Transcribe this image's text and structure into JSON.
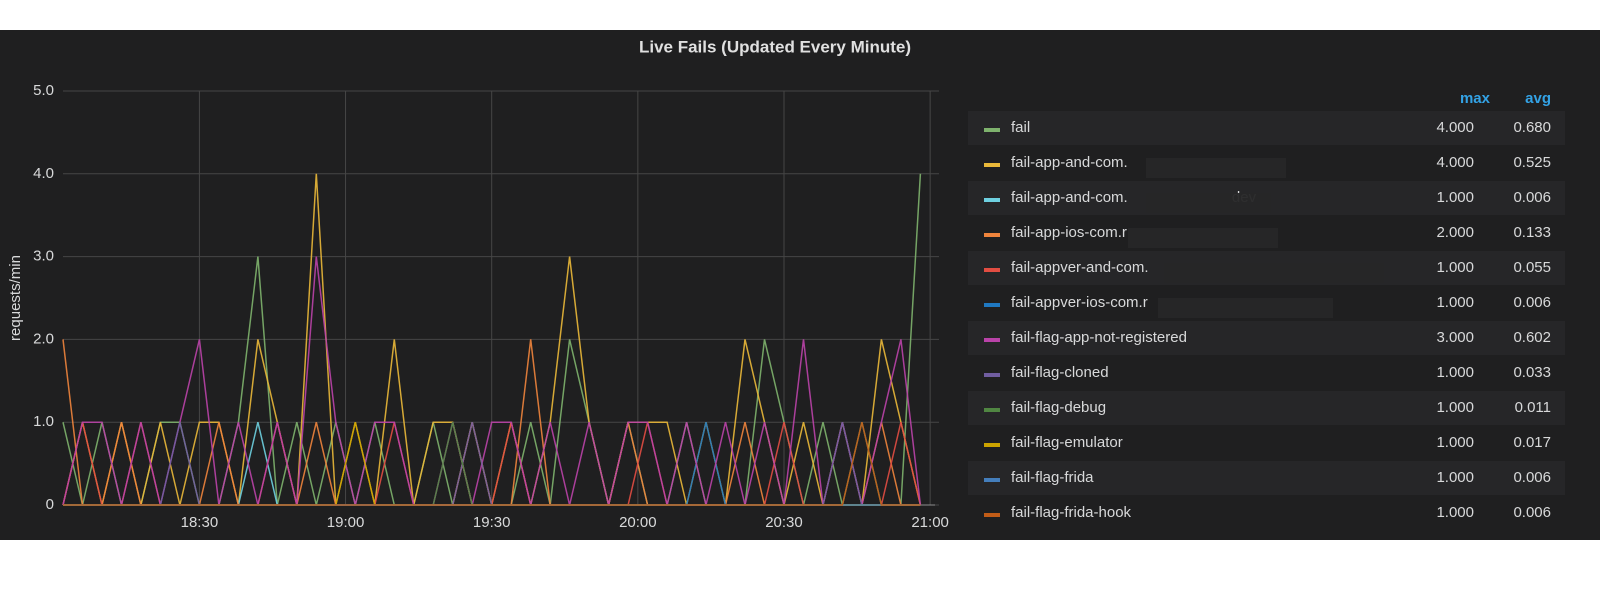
{
  "chart_data": {
    "type": "line",
    "title": "Live Fails (Updated Every Minute)",
    "y_label": "requests/min",
    "x": [
      "18:02",
      "18:06",
      "18:10",
      "18:14",
      "18:18",
      "18:22",
      "18:26",
      "18:30",
      "18:34",
      "18:38",
      "18:42",
      "18:46",
      "18:50",
      "18:54",
      "18:58",
      "19:02",
      "19:06",
      "19:10",
      "19:14",
      "19:18",
      "19:22",
      "19:26",
      "19:30",
      "19:34",
      "19:38",
      "19:42",
      "19:46",
      "19:50",
      "19:54",
      "19:58",
      "20:02",
      "20:06",
      "20:10",
      "20:14",
      "20:18",
      "20:22",
      "20:26",
      "20:30",
      "20:34",
      "20:38",
      "20:42",
      "20:46",
      "20:50",
      "20:54",
      "20:58"
    ],
    "xlim": [
      "18:02",
      "21:01"
    ],
    "xticks": [
      "18:30",
      "19:00",
      "19:30",
      "20:00",
      "20:30",
      "21:00"
    ],
    "ylim": [
      0,
      5
    ],
    "yticks": [
      0,
      {
        "value": 1,
        "label": "1.0"
      },
      {
        "value": 2,
        "label": "2.0"
      },
      {
        "value": 3,
        "label": "3.0"
      },
      {
        "value": 4,
        "label": "4.0"
      },
      {
        "value": 5,
        "label": "5.0"
      }
    ],
    "grid": true,
    "legend_columns": [
      "max",
      "avg"
    ],
    "series": [
      {
        "name": "fail",
        "color": "#7eb26d",
        "max": "4.000",
        "avg": "0.680",
        "values": [
          1,
          0,
          1,
          0,
          0,
          1,
          1,
          0,
          0,
          1,
          3,
          0,
          1,
          0,
          1,
          0,
          1,
          0,
          0,
          1,
          0,
          1,
          0,
          0,
          1,
          0,
          2,
          1,
          0,
          1,
          0,
          0,
          1,
          0,
          0,
          0,
          2,
          1,
          0,
          1,
          0,
          1,
          0,
          0,
          4
        ]
      },
      {
        "name": "fail-app-and-com.",
        "color": "#eab839",
        "max": "4.000",
        "avg": "0.525",
        "values": [
          0,
          1,
          0,
          1,
          0,
          1,
          0,
          1,
          1,
          0,
          2,
          1,
          0,
          4,
          0,
          1,
          0,
          2,
          0,
          1,
          1,
          0,
          0,
          1,
          0,
          1,
          3,
          1,
          0,
          1,
          1,
          1,
          0,
          1,
          0,
          2,
          1,
          0,
          1,
          0,
          1,
          0,
          2,
          1,
          0
        ]
      },
      {
        "name": "fail-app-and-com.                         dev",
        "color": "#6ed0e0",
        "max": "1.000",
        "avg": "0.006",
        "values": [
          0,
          0,
          0,
          0,
          0,
          0,
          0,
          0,
          0,
          0,
          1,
          0,
          0,
          0,
          0,
          0,
          0,
          0,
          0,
          0,
          0,
          0,
          0,
          0,
          0,
          0,
          0,
          0,
          0,
          0,
          0,
          0,
          0,
          0,
          0,
          0,
          0,
          0,
          0,
          0,
          0,
          0,
          0,
          0,
          0
        ]
      },
      {
        "name": "fail-app-ios-com.r",
        "color": "#ef843c",
        "max": "2.000",
        "avg": "0.133",
        "values": [
          2,
          0,
          0,
          1,
          0,
          0,
          0,
          0,
          1,
          0,
          0,
          0,
          0,
          1,
          0,
          0,
          0,
          0,
          0,
          0,
          0,
          1,
          0,
          0,
          2,
          0,
          0,
          0,
          0,
          1,
          0,
          0,
          0,
          0,
          0,
          1,
          0,
          0,
          0,
          0,
          0,
          0,
          1,
          0,
          0
        ]
      },
      {
        "name": "fail-appver-and-com.",
        "color": "#e24d42",
        "max": "1.000",
        "avg": "0.055",
        "values": [
          0,
          1,
          0,
          0,
          1,
          0,
          0,
          0,
          0,
          0,
          0,
          1,
          0,
          0,
          0,
          0,
          0,
          1,
          0,
          0,
          0,
          0,
          0,
          1,
          0,
          0,
          0,
          0,
          0,
          0,
          1,
          0,
          0,
          0,
          0,
          0,
          0,
          1,
          0,
          0,
          0,
          0,
          0,
          1,
          0
        ]
      },
      {
        "name": "fail-appver-ios-com.r",
        "color": "#1f78c1",
        "max": "1.000",
        "avg": "0.006",
        "values": [
          0,
          0,
          0,
          0,
          0,
          0,
          0,
          0,
          0,
          0,
          0,
          0,
          0,
          0,
          0,
          0,
          0,
          0,
          0,
          0,
          0,
          0,
          0,
          0,
          0,
          0,
          0,
          0,
          0,
          0,
          0,
          0,
          0,
          1,
          0,
          0,
          0,
          0,
          0,
          0,
          0,
          0,
          0,
          0,
          0
        ]
      },
      {
        "name": "fail-flag-app-not-registered",
        "color": "#ba43a9",
        "max": "3.000",
        "avg": "0.602",
        "values": [
          0,
          1,
          1,
          0,
          1,
          0,
          1,
          2,
          0,
          1,
          0,
          1,
          0,
          3,
          1,
          0,
          1,
          1,
          0,
          0,
          1,
          0,
          1,
          1,
          0,
          1,
          0,
          1,
          0,
          1,
          1,
          0,
          1,
          0,
          1,
          0,
          1,
          0,
          2,
          0,
          1,
          0,
          1,
          2,
          0
        ]
      },
      {
        "name": "fail-flag-cloned",
        "color": "#705da0",
        "max": "1.000",
        "avg": "0.033",
        "values": [
          0,
          0,
          0,
          0,
          0,
          0,
          1,
          0,
          0,
          0,
          0,
          0,
          0,
          0,
          0,
          0,
          0,
          0,
          0,
          0,
          0,
          1,
          0,
          0,
          0,
          0,
          0,
          0,
          0,
          0,
          0,
          0,
          0,
          0,
          0,
          0,
          0,
          0,
          0,
          0,
          1,
          0,
          0,
          0,
          0
        ]
      },
      {
        "name": "fail-flag-debug",
        "color": "#508642",
        "max": "1.000",
        "avg": "0.011",
        "values": [
          0,
          0,
          0,
          0,
          0,
          0,
          0,
          0,
          0,
          0,
          0,
          0,
          0,
          0,
          0,
          0,
          0,
          0,
          0,
          0,
          1,
          0,
          0,
          0,
          0,
          0,
          0,
          0,
          0,
          0,
          0,
          0,
          0,
          0,
          0,
          0,
          0,
          0,
          0,
          0,
          0,
          0,
          0,
          0,
          0
        ]
      },
      {
        "name": "fail-flag-emulator",
        "color": "#cca300",
        "max": "1.000",
        "avg": "0.017",
        "values": [
          0,
          0,
          0,
          0,
          0,
          0,
          0,
          0,
          0,
          0,
          0,
          0,
          0,
          0,
          0,
          1,
          0,
          0,
          0,
          0,
          0,
          0,
          0,
          0,
          0,
          0,
          0,
          0,
          0,
          0,
          0,
          0,
          0,
          0,
          0,
          0,
          0,
          0,
          0,
          0,
          0,
          0,
          0,
          0,
          0
        ]
      },
      {
        "name": "fail-flag-frida",
        "color": "#447ebc",
        "max": "1.000",
        "avg": "0.006",
        "values": [
          0,
          0,
          0,
          0,
          0,
          0,
          0,
          0,
          0,
          0,
          0,
          0,
          0,
          0,
          0,
          0,
          0,
          0,
          0,
          0,
          0,
          0,
          0,
          0,
          0,
          0,
          0,
          0,
          0,
          0,
          0,
          0,
          0,
          0,
          0,
          0,
          0,
          0,
          0,
          0,
          0,
          0,
          0,
          0,
          0
        ]
      },
      {
        "name": "fail-flag-frida-hook",
        "color": "#c15c17",
        "max": "1.000",
        "avg": "0.006",
        "values": [
          0,
          0,
          0,
          0,
          0,
          0,
          0,
          0,
          0,
          0,
          0,
          0,
          0,
          0,
          0,
          0,
          0,
          0,
          0,
          0,
          0,
          0,
          0,
          0,
          0,
          0,
          0,
          0,
          0,
          0,
          0,
          0,
          0,
          0,
          0,
          0,
          0,
          0,
          0,
          0,
          0,
          1,
          0,
          0,
          0
        ]
      }
    ]
  }
}
